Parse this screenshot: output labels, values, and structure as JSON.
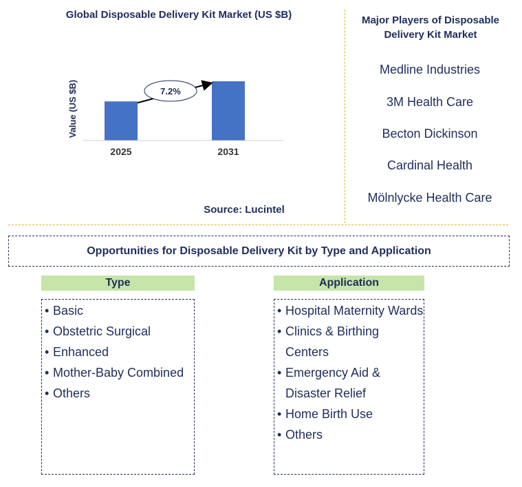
{
  "chart_data": {
    "type": "bar",
    "title": "Global Disposable Delivery Kit Market (US $B)",
    "categories": [
      "2025",
      "2031"
    ],
    "values": [
      0.66,
      1.0
    ],
    "ylabel": "Value (US $B)",
    "annotation": "7.2%",
    "colors": {
      "bar": "#4472c4",
      "text": "#1f2d5a"
    }
  },
  "source": "Source: Lucintel",
  "players": {
    "title_line1": "Major Players of Disposable",
    "title_line2": "Delivery Kit Market",
    "items": [
      "Medline Industries",
      "3M Health Care",
      "Becton Dickinson",
      "Cardinal Health",
      "Mölnlycke Health Care"
    ]
  },
  "opportunities": {
    "title": "Opportunities for Disposable Delivery Kit by Type and Application",
    "type": {
      "header": "Type",
      "items": [
        "Basic",
        "Obstetric Surgical",
        "Enhanced",
        "Mother-Baby Combined",
        "Others"
      ]
    },
    "application": {
      "header": "Application",
      "items": [
        "Hospital Maternity Wards",
        "Clinics & Birthing Centers",
        "Emergency Aid & Disaster Relief",
        "Home Birth Use",
        "Others"
      ]
    }
  }
}
